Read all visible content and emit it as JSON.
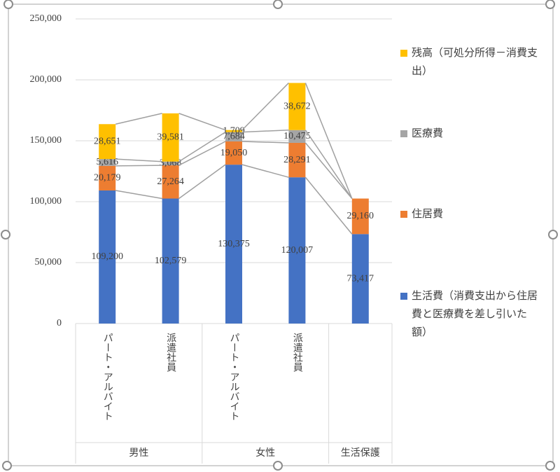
{
  "chart_data": {
    "type": "bar",
    "stacked": true,
    "series_lines": true,
    "grid": true,
    "legend": "right",
    "categories": [
      "パート・アルバイト",
      "派遣社員",
      "パート・アルバイト",
      "派遣社員",
      null
    ],
    "groups": [
      "男性",
      "女性",
      "生活保護"
    ],
    "ylim": [
      0,
      250000
    ],
    "yticks": [
      0,
      {
        "value": 50000,
        "label": "50,000"
      },
      {
        "value": 100000,
        "label": "100,000"
      },
      {
        "value": 150000,
        "label": "150,000"
      },
      {
        "value": 200000,
        "label": "200,000"
      },
      {
        "value": 250000,
        "label": "250,000"
      }
    ],
    "series": [
      {
        "name": "生活費（消費支出から住居費と医療費を差し引いた額）",
        "color": "#4472c4",
        "values": [
          109200,
          102579,
          130375,
          120007,
          73417
        ],
        "value_labels": [
          "109,200",
          "102,579",
          "130,375",
          "120,007",
          "73,417"
        ]
      },
      {
        "name": "住居費",
        "color": "#ed7d31",
        "values": [
          20179,
          27264,
          19050,
          28291,
          29160
        ],
        "value_labels": [
          "20,179",
          "27,264",
          "19,050",
          "28,291",
          "29,160"
        ]
      },
      {
        "name": "医療費",
        "color": "#a5a5a5",
        "values": [
          5616,
          3068,
          7684,
          10475,
          null
        ],
        "value_labels": [
          "5,616",
          "3,068",
          "7,684",
          "10,475",
          null
        ]
      },
      {
        "name": "残高（可処分所得－消費支出）",
        "color": "#ffc000",
        "values": [
          28651,
          39581,
          1709,
          38672,
          null
        ],
        "value_labels": [
          "28,651",
          "39,581",
          "1,709",
          "38,672",
          null
        ]
      }
    ]
  }
}
